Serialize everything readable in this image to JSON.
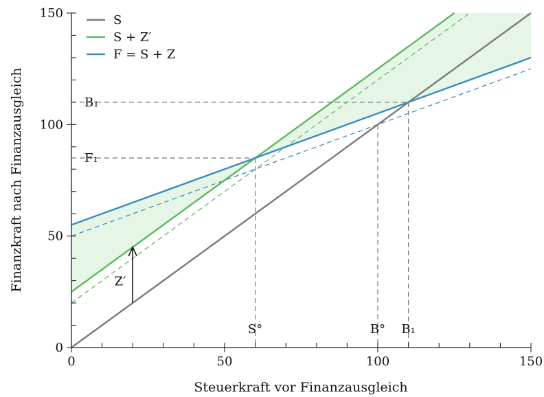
{
  "chart_data": {
    "type": "line",
    "xlabel": "Steuerkraft vor Finanzausgleich",
    "ylabel": "Finanzkraft nach Finanzausgleich",
    "xlim": [
      0,
      150
    ],
    "ylim": [
      0,
      150
    ],
    "x_ticks": [
      "0",
      "50",
      "100",
      "150"
    ],
    "y_ticks": [
      "0",
      "50",
      "100",
      "150"
    ],
    "x_tick_values": [
      0,
      50,
      100,
      150
    ],
    "y_tick_values": [
      0,
      50,
      100,
      150
    ],
    "grid": false,
    "legend_position": "top-left",
    "series": [
      {
        "name": "S",
        "color": "#7a7a7a",
        "style": "solid",
        "x": [
          0,
          150
        ],
        "y": [
          0,
          150
        ]
      },
      {
        "name": "S + Z′",
        "color": "#5cb85c",
        "style": "solid",
        "x": [
          0,
          125
        ],
        "y": [
          25,
          150
        ]
      },
      {
        "name": "F = S + Z",
        "color": "#3a8bbf",
        "style": "solid",
        "x": [
          0,
          150
        ],
        "y": [
          55,
          130
        ]
      },
      {
        "name": "",
        "color": "#5cb85c",
        "style": "dashed",
        "x": [
          0,
          130
        ],
        "y": [
          20,
          150
        ]
      },
      {
        "name": "",
        "color": "#3a8bbf",
        "style": "dashed",
        "x": [
          0,
          150
        ],
        "y": [
          50,
          125
        ]
      }
    ],
    "shaded_region": {
      "color": "#e6f6e6",
      "between": [
        "S + Z′",
        "F = S + Z"
      ],
      "x_range": [
        0,
        150
      ]
    },
    "reference_lines": [
      {
        "label": "B₁",
        "axis": "y",
        "value": 110,
        "x_end": 110
      },
      {
        "label": "F₁",
        "axis": "y",
        "value": 85,
        "x_end": 60
      },
      {
        "label": "S°",
        "axis": "x",
        "value": 60,
        "y_end": 85
      },
      {
        "label": "B°",
        "axis": "x",
        "value": 100,
        "y_end": 100
      },
      {
        "label": "B₁",
        "axis": "x",
        "value": 110,
        "y_end": 110
      }
    ],
    "annotations": [
      {
        "text": "Z′",
        "type": "arrow",
        "x": 20,
        "y_from": 20,
        "y_to": 45
      }
    ]
  }
}
